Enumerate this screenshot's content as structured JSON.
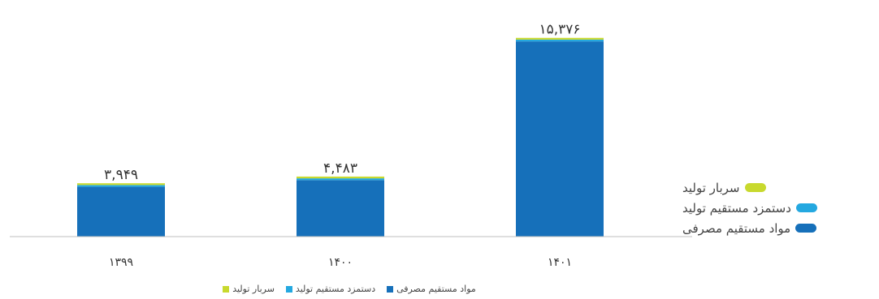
{
  "chart_data": {
    "type": "bar",
    "stacked": true,
    "categories": [
      "۱۳۹۹",
      "۱۴۰۰",
      "۱۴۰۱"
    ],
    "series": [
      {
        "name": "مواد مستقیم مصرفی",
        "color": "#1670BA",
        "values": [
          3899,
          4423,
          15286
        ]
      },
      {
        "name": "دستمزد مستقیم تولید",
        "color": "#24A8E0",
        "values": [
          15,
          15,
          20
        ]
      },
      {
        "name": "سربار تولید",
        "color": "#C8D92E",
        "values": [
          35,
          45,
          70
        ]
      }
    ],
    "totals": [
      3949,
      4483,
      15376
    ],
    "total_labels": [
      "۳,۹۴۹",
      "۴,۴۸۳",
      "۱۵,۳۷۶"
    ],
    "ylim": [
      0,
      16500
    ],
    "grid": false,
    "legend": {
      "side": "right",
      "bottom": "bottom-center"
    }
  },
  "side_legend": [
    {
      "label": "سربار تولید",
      "color": "#C8D92E"
    },
    {
      "label": "دستمزد مستقیم تولید",
      "color": "#24A8E0"
    },
    {
      "label": "مواد مستقیم مصرفی",
      "color": "#1670BA"
    }
  ],
  "bottom_legend": [
    {
      "label": "مواد مستقیم مصرفی",
      "color": "#1670BA"
    },
    {
      "label": "دستمزد مستقیم تولید",
      "color": "#24A8E0"
    },
    {
      "label": "سربار تولید",
      "color": "#C8D92E"
    }
  ]
}
